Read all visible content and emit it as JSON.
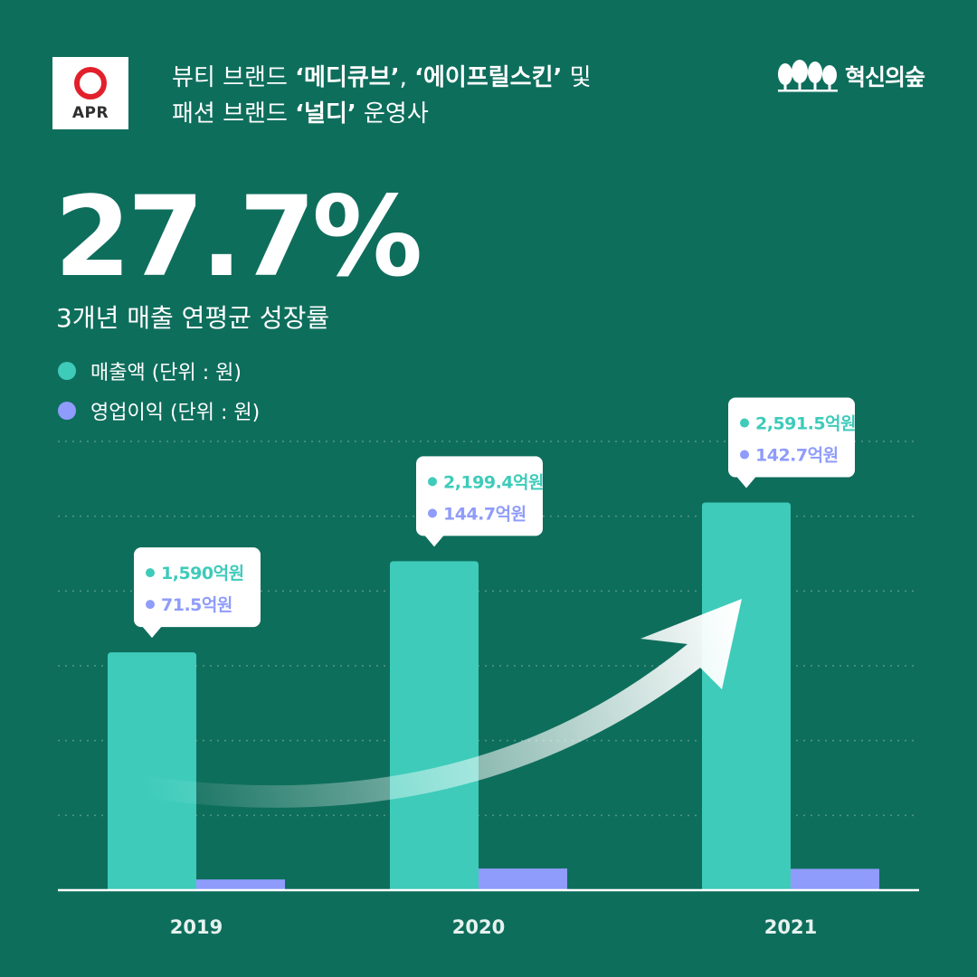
{
  "logo": {
    "text": "APR"
  },
  "headline": {
    "line1": {
      "p1": "뷰티 브랜드 ",
      "b1": "‘메디큐브’",
      "p2": ", ",
      "b2": "‘에이프릴스킨’",
      "p3": " 및"
    },
    "line2": {
      "p1": "패션 브랜드 ",
      "b1": "‘널디’",
      "p2": " 운영사"
    }
  },
  "brand": {
    "name": "혁신의숲"
  },
  "highlight": {
    "value": "27.7%",
    "caption": "3개년 매출 연평균 성장률"
  },
  "colors": {
    "background": "#0e6e5c",
    "revenue": "#3ecbba",
    "profit": "#8f9cfb",
    "white": "#ffffff"
  },
  "chart_data": {
    "type": "bar",
    "categories": [
      "2019",
      "2020",
      "2021"
    ],
    "series": [
      {
        "name": "매출액 (단위 : 원)",
        "values": [
          1590,
          2199.4,
          2591.5
        ],
        "labels": [
          "1,590억원",
          "2,199.4억원",
          "2,591.5억원"
        ]
      },
      {
        "name": "영업이익 (단위 : 원)",
        "values": [
          71.5,
          144.7,
          142.7
        ],
        "labels": [
          "71.5억원",
          "144.7억원",
          "142.7억원"
        ]
      }
    ],
    "unit": "억원",
    "ylim": [
      0,
      3000
    ],
    "grid": true,
    "legend_position": "top-left"
  }
}
